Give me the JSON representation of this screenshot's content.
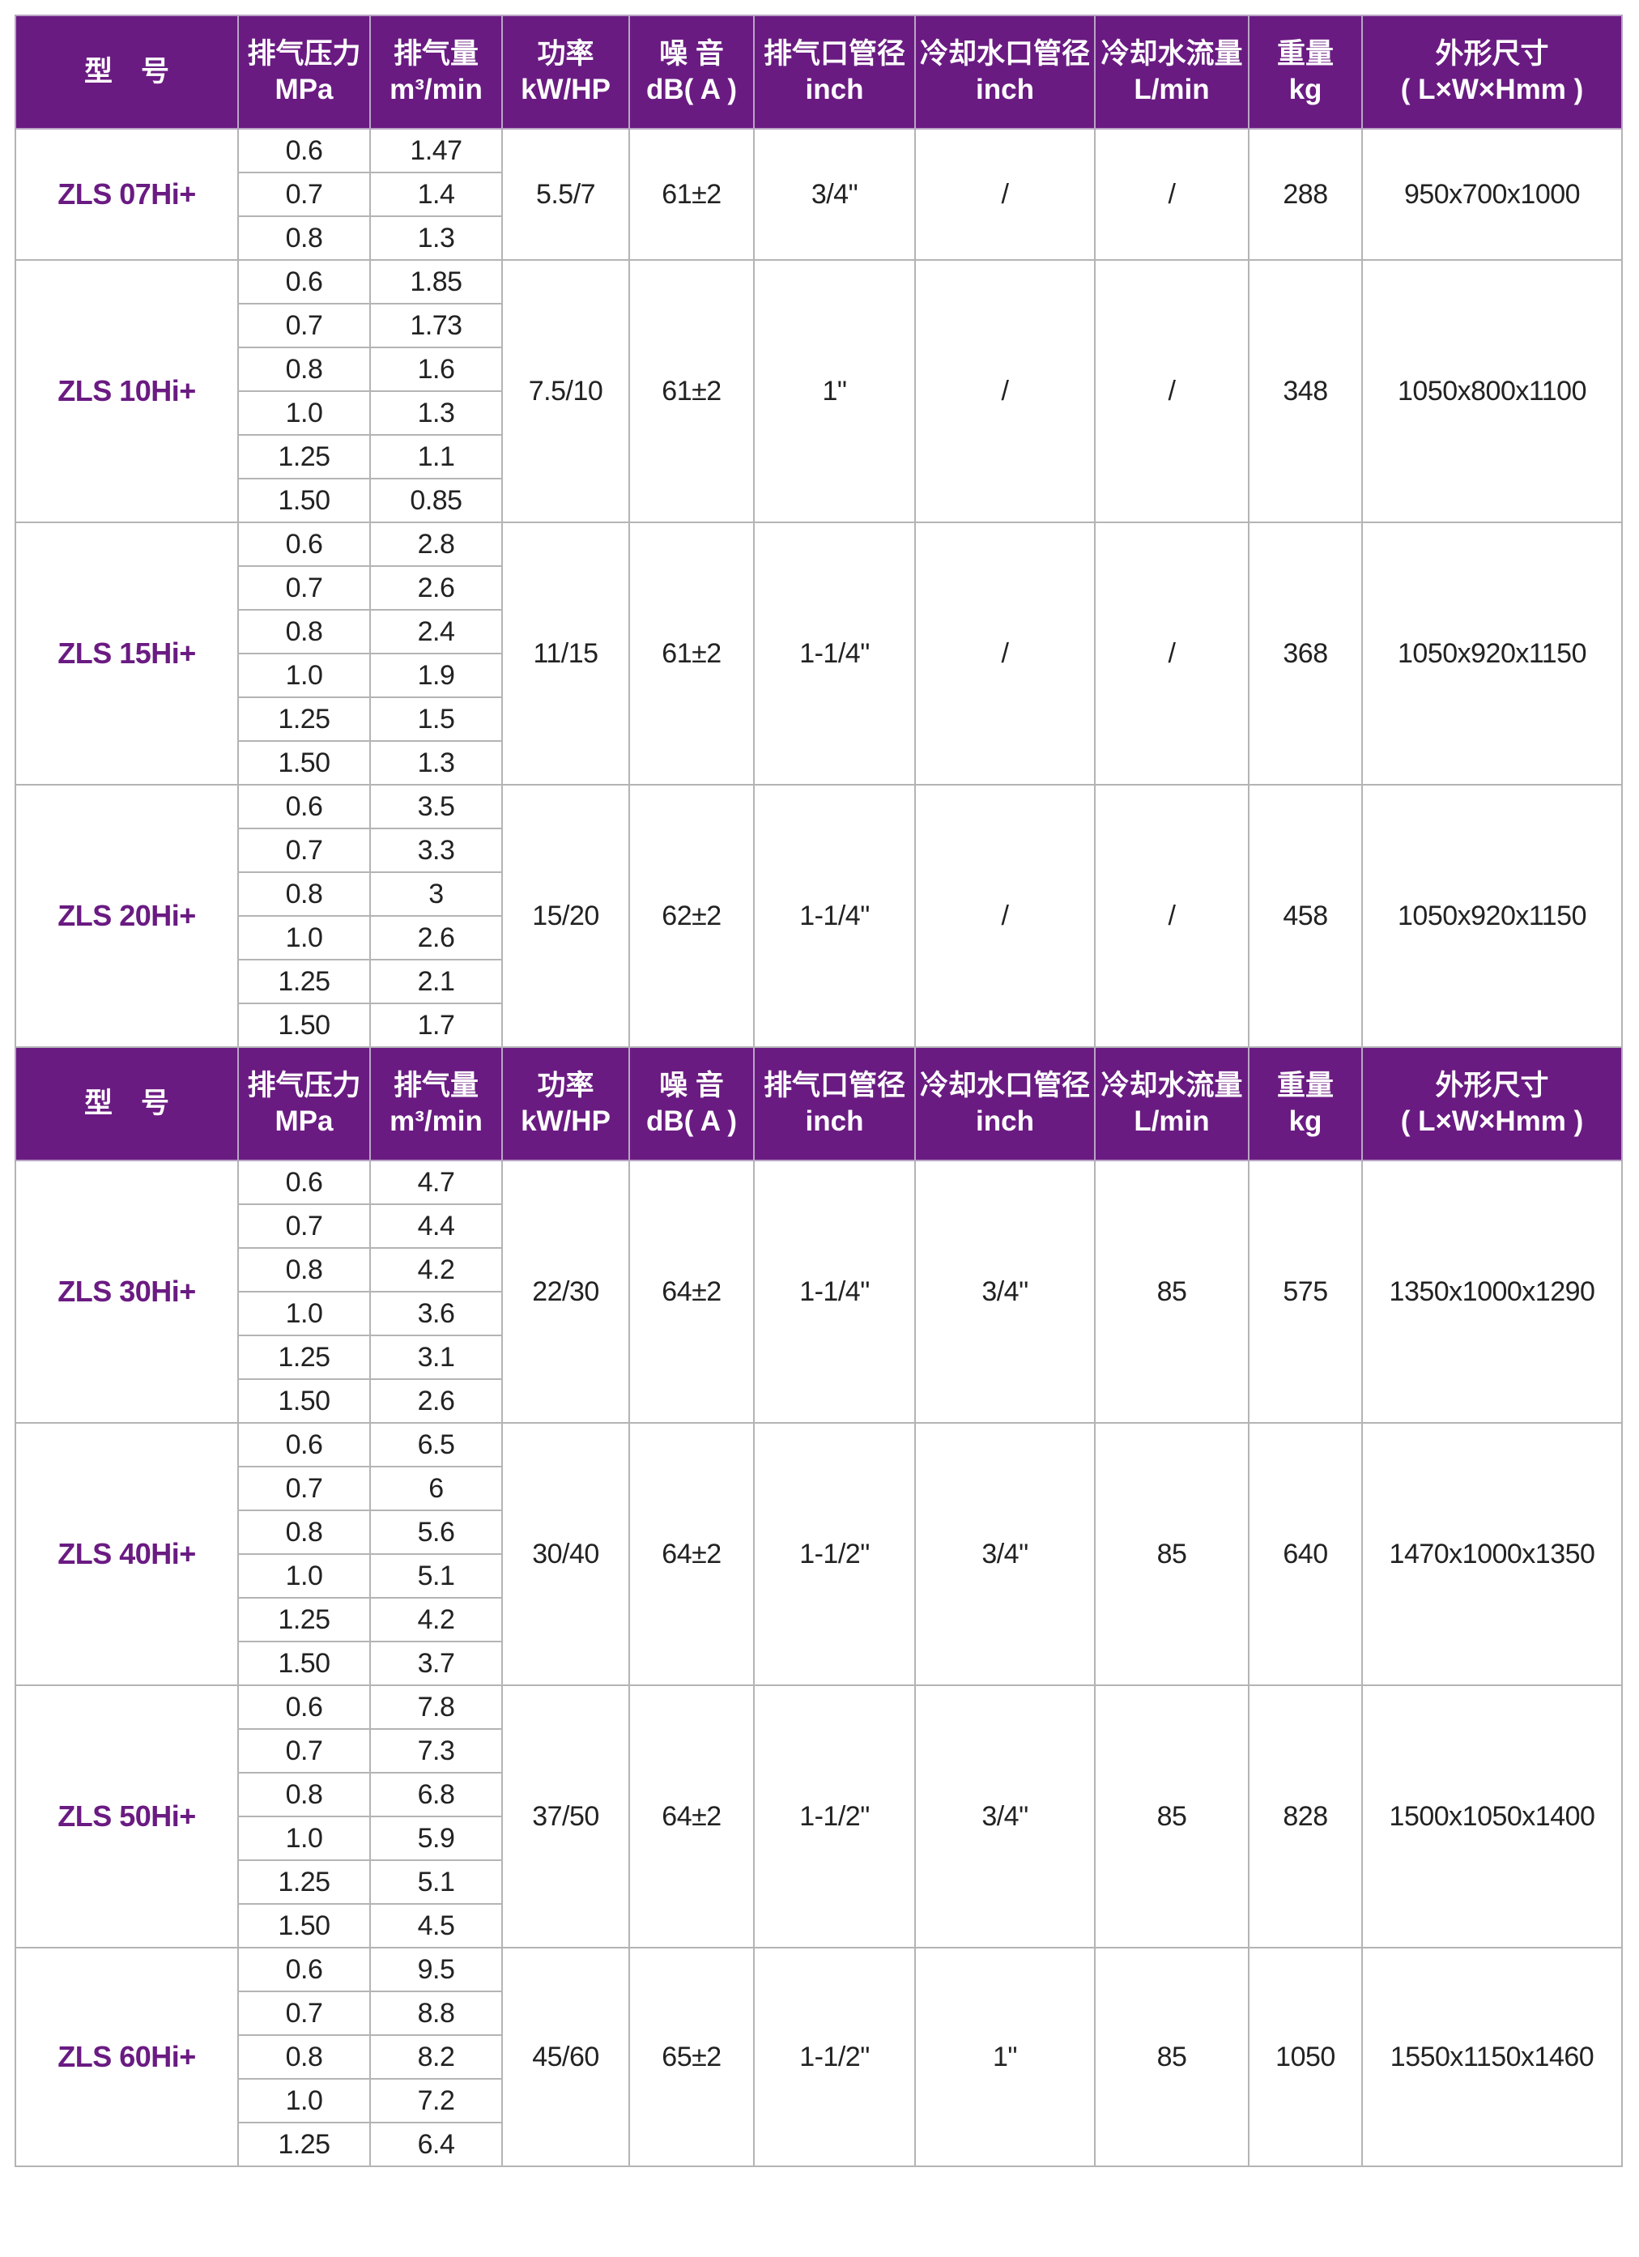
{
  "brand_color": "#6a1b82",
  "headers": [
    {
      "line1": "型　号",
      "line2": ""
    },
    {
      "line1": "排气压力",
      "line2": "MPa"
    },
    {
      "line1": "排气量",
      "line2": "m³/min"
    },
    {
      "line1": "功率",
      "line2": "kW/HP"
    },
    {
      "line1": "噪 音",
      "line2": "dB( A )"
    },
    {
      "line1": "排气口管径",
      "line2": "inch"
    },
    {
      "line1": "冷却水口管径",
      "line2": "inch"
    },
    {
      "line1": "冷却水流量",
      "line2": "L/min"
    },
    {
      "line1": "重量",
      "line2": "kg"
    },
    {
      "line1": "外形尺寸",
      "line2": "( L×W×Hmm )"
    }
  ],
  "sections": [
    {
      "models": [
        {
          "model": "ZLS 07Hi+",
          "pressures": [
            "0.6",
            "0.7",
            "0.8"
          ],
          "flows": [
            "1.47",
            "1.4",
            "1.3"
          ],
          "power": "5.5/7",
          "noise": "61±2",
          "outlet": "3/4\"",
          "water_pipe": "/",
          "water_flow": "/",
          "weight": "288",
          "dimensions": "950x700x1000"
        },
        {
          "model": "ZLS 10Hi+",
          "pressures": [
            "0.6",
            "0.7",
            "0.8",
            "1.0",
            "1.25",
            "1.50"
          ],
          "flows": [
            "1.85",
            "1.73",
            "1.6",
            "1.3",
            "1.1",
            "0.85"
          ],
          "power": "7.5/10",
          "noise": "61±2",
          "outlet": "1\"",
          "water_pipe": "/",
          "water_flow": "/",
          "weight": "348",
          "dimensions": "1050x800x1100"
        },
        {
          "model": "ZLS 15Hi+",
          "pressures": [
            "0.6",
            "0.7",
            "0.8",
            "1.0",
            "1.25",
            "1.50"
          ],
          "flows": [
            "2.8",
            "2.6",
            "2.4",
            "1.9",
            "1.5",
            "1.3"
          ],
          "power": "11/15",
          "noise": "61±2",
          "outlet": "1-1/4\"",
          "water_pipe": "/",
          "water_flow": "/",
          "weight": "368",
          "dimensions": "1050x920x1150"
        },
        {
          "model": "ZLS 20Hi+",
          "pressures": [
            "0.6",
            "0.7",
            "0.8",
            "1.0",
            "1.25",
            "1.50"
          ],
          "flows": [
            "3.5",
            "3.3",
            "3",
            "2.6",
            "2.1",
            "1.7"
          ],
          "power": "15/20",
          "noise": "62±2",
          "outlet": "1-1/4\"",
          "water_pipe": "/",
          "water_flow": "/",
          "weight": "458",
          "dimensions": "1050x920x1150"
        }
      ]
    },
    {
      "models": [
        {
          "model": "ZLS 30Hi+",
          "pressures": [
            "0.6",
            "0.7",
            "0.8",
            "1.0",
            "1.25",
            "1.50"
          ],
          "flows": [
            "4.7",
            "4.4",
            "4.2",
            "3.6",
            "3.1",
            "2.6"
          ],
          "power": "22/30",
          "noise": "64±2",
          "outlet": "1-1/4\"",
          "water_pipe": "3/4\"",
          "water_flow": "85",
          "weight": "575",
          "dimensions": "1350x1000x1290"
        },
        {
          "model": "ZLS 40Hi+",
          "pressures": [
            "0.6",
            "0.7",
            "0.8",
            "1.0",
            "1.25",
            "1.50"
          ],
          "flows": [
            "6.5",
            "6",
            "5.6",
            "5.1",
            "4.2",
            "3.7"
          ],
          "power": "30/40",
          "noise": "64±2",
          "outlet": "1-1/2\"",
          "water_pipe": "3/4\"",
          "water_flow": "85",
          "weight": "640",
          "dimensions": "1470x1000x1350"
        },
        {
          "model": "ZLS 50Hi+",
          "pressures": [
            "0.6",
            "0.7",
            "0.8",
            "1.0",
            "1.25",
            "1.50"
          ],
          "flows": [
            "7.8",
            "7.3",
            "6.8",
            "5.9",
            "5.1",
            "4.5"
          ],
          "power": "37/50",
          "noise": "64±2",
          "outlet": "1-1/2\"",
          "water_pipe": "3/4\"",
          "water_flow": "85",
          "weight": "828",
          "dimensions": "1500x1050x1400"
        },
        {
          "model": "ZLS 60Hi+",
          "pressures": [
            "0.6",
            "0.7",
            "0.8",
            "1.0",
            "1.25"
          ],
          "flows": [
            "9.5",
            "8.8",
            "8.2",
            "7.2",
            "6.4"
          ],
          "power": "45/60",
          "noise": "65±2",
          "outlet": "1-1/2\"",
          "water_pipe": "1\"",
          "water_flow": "85",
          "weight": "1050",
          "dimensions": "1550x1150x1460"
        }
      ]
    }
  ]
}
